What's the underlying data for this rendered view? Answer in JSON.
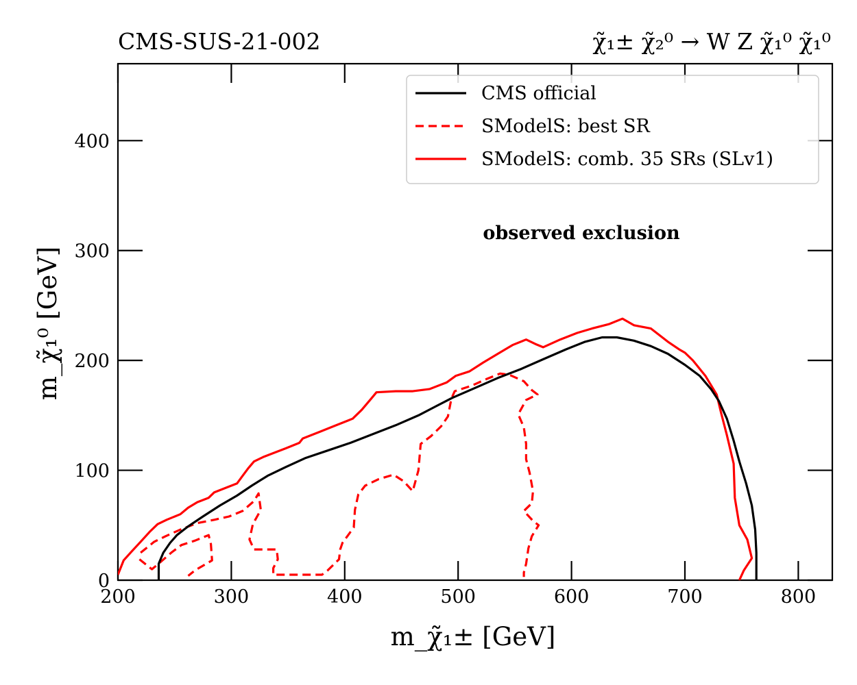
{
  "chart_data": {
    "type": "line",
    "title_left": "CMS-SUS-21-002",
    "title_right": "χ̃₁± χ̃₂⁰ → W Z χ̃₁⁰ χ̃₁⁰",
    "xlabel": "m_χ̃₁± [GeV]",
    "ylabel": "m_χ̃₁⁰ [GeV]",
    "xlim": [
      200,
      830
    ],
    "ylim": [
      0,
      470
    ],
    "xticks": [
      200,
      300,
      400,
      500,
      600,
      700,
      800
    ],
    "yticks": [
      0,
      100,
      200,
      300,
      400
    ],
    "annotation": "observed exclusion",
    "legend_position": "top-right",
    "series": [
      {
        "name": "CMS official",
        "color": "#000000",
        "style": "solid",
        "segments": [
          [
            [
              236,
              0
            ],
            [
              236,
              15
            ],
            [
              240,
              25
            ],
            [
              246,
              34
            ],
            [
              252,
              41
            ],
            [
              262,
              49
            ],
            [
              275,
              58
            ],
            [
              290,
              68
            ],
            [
              305,
              77
            ],
            [
              318,
              86
            ],
            [
              332,
              95
            ],
            [
              348,
              103
            ],
            [
              365,
              111
            ],
            [
              385,
              118
            ],
            [
              405,
              125
            ],
            [
              425,
              133
            ],
            [
              445,
              141
            ],
            [
              465,
              150
            ],
            [
              480,
              158
            ],
            [
              495,
              166
            ],
            [
              515,
              175
            ],
            [
              535,
              184
            ],
            [
              555,
              192
            ],
            [
              575,
              201
            ],
            [
              595,
              210
            ],
            [
              612,
              217
            ],
            [
              627,
              221
            ],
            [
              640,
              221
            ],
            [
              655,
              218
            ],
            [
              670,
              213
            ],
            [
              685,
              206
            ],
            [
              700,
              196
            ],
            [
              713,
              186
            ],
            [
              723,
              174
            ],
            [
              730,
              163
            ],
            [
              737,
              147
            ],
            [
              743,
              127
            ],
            [
              748,
              108
            ],
            [
              754,
              88
            ],
            [
              759,
              68
            ],
            [
              762,
              46
            ],
            [
              763,
              25
            ],
            [
              763,
              0
            ]
          ]
        ]
      },
      {
        "name": "SModelS: best SR",
        "color": "#ff0000",
        "style": "dashed",
        "segments": [
          [
            [
              219,
              19
            ],
            [
              230,
              10
            ],
            [
              237,
              16
            ],
            [
              247,
              25
            ],
            [
              256,
              32
            ],
            [
              268,
              36
            ],
            [
              280,
              41
            ],
            [
              282,
              33
            ],
            [
              283,
              18
            ],
            [
              278,
              15
            ],
            [
              268,
              9
            ],
            [
              262,
              4
            ]
          ],
          [
            [
              220,
              25
            ],
            [
              232,
              35
            ],
            [
              242,
              40
            ],
            [
              255,
              46
            ],
            [
              270,
              52
            ],
            [
              285,
              55
            ],
            [
              298,
              58
            ],
            [
              310,
              63
            ],
            [
              320,
              72
            ],
            [
              324,
              79
            ],
            [
              326,
              64
            ],
            [
              319,
              51
            ],
            [
              316,
              37
            ],
            [
              320,
              28
            ],
            [
              340,
              28
            ],
            [
              341,
              19
            ],
            [
              337,
              11
            ],
            [
              337,
              5
            ],
            [
              350,
              5
            ],
            [
              370,
              5
            ],
            [
              380,
              5
            ],
            [
              385,
              9
            ],
            [
              395,
              19
            ],
            [
              396,
              28
            ],
            [
              398,
              34
            ],
            [
              408,
              48
            ],
            [
              409,
              64
            ],
            [
              412,
              78
            ],
            [
              418,
              86
            ],
            [
              430,
              92
            ],
            [
              443,
              96
            ],
            [
              452,
              90
            ],
            [
              460,
              81
            ],
            [
              465,
              100
            ],
            [
              467,
              124
            ],
            [
              476,
              131
            ],
            [
              485,
              140
            ],
            [
              491,
              149
            ],
            [
              494,
              165
            ],
            [
              497,
              172
            ],
            [
              512,
              177
            ],
            [
              525,
              183
            ],
            [
              537,
              188
            ],
            [
              545,
              187
            ],
            [
              558,
              181
            ],
            [
              565,
              173
            ],
            [
              570,
              169
            ],
            [
              560,
              164
            ],
            [
              553,
              151
            ],
            [
              558,
              139
            ],
            [
              560,
              124
            ],
            [
              560,
              110
            ],
            [
              563,
              98
            ],
            [
              566,
              81
            ],
            [
              565,
              70
            ],
            [
              558,
              63
            ],
            [
              566,
              54
            ],
            [
              571,
              50
            ],
            [
              565,
              40
            ],
            [
              562,
              29
            ],
            [
              560,
              15
            ],
            [
              558,
              7
            ],
            [
              558,
              3
            ]
          ]
        ]
      },
      {
        "name": "SModelS: comb. 35 SRs (SLv1)",
        "color": "#ff0000",
        "style": "solid",
        "segments": [
          [
            [
              200,
              5
            ],
            [
              205,
              18
            ],
            [
              212,
              26
            ],
            [
              220,
              35
            ],
            [
              228,
              44
            ],
            [
              235,
              51
            ],
            [
              243,
              55
            ],
            [
              255,
              60
            ],
            [
              262,
              66
            ],
            [
              270,
              71
            ],
            [
              280,
              75
            ],
            [
              285,
              80
            ],
            [
              295,
              84
            ],
            [
              305,
              88
            ],
            [
              310,
              95
            ],
            [
              315,
              102
            ],
            [
              320,
              108
            ],
            [
              328,
              112
            ],
            [
              338,
              116
            ],
            [
              348,
              120
            ],
            [
              360,
              125
            ],
            [
              363,
              129
            ],
            [
              378,
              135
            ],
            [
              390,
              140
            ],
            [
              407,
              147
            ],
            [
              415,
              155
            ],
            [
              424,
              166
            ],
            [
              428,
              171
            ],
            [
              445,
              172
            ],
            [
              460,
              172
            ],
            [
              475,
              174
            ],
            [
              490,
              180
            ],
            [
              498,
              186
            ],
            [
              510,
              190
            ],
            [
              522,
              198
            ],
            [
              535,
              206
            ],
            [
              548,
              214
            ],
            [
              560,
              219
            ],
            [
              568,
              215
            ],
            [
              575,
              212
            ],
            [
              590,
              219
            ],
            [
              605,
              225
            ],
            [
              618,
              229
            ],
            [
              633,
              233
            ],
            [
              645,
              238
            ],
            [
              655,
              232
            ],
            [
              670,
              229
            ],
            [
              685,
              217
            ],
            [
              695,
              210
            ],
            [
              700,
              207
            ],
            [
              707,
              200
            ],
            [
              718,
              186
            ],
            [
              728,
              169
            ],
            [
              732,
              152
            ],
            [
              737,
              132
            ],
            [
              743,
              106
            ],
            [
              744,
              75
            ],
            [
              748,
              50
            ],
            [
              755,
              37
            ],
            [
              759,
              20
            ],
            [
              752,
              9
            ],
            [
              748,
              0
            ]
          ]
        ]
      }
    ]
  }
}
